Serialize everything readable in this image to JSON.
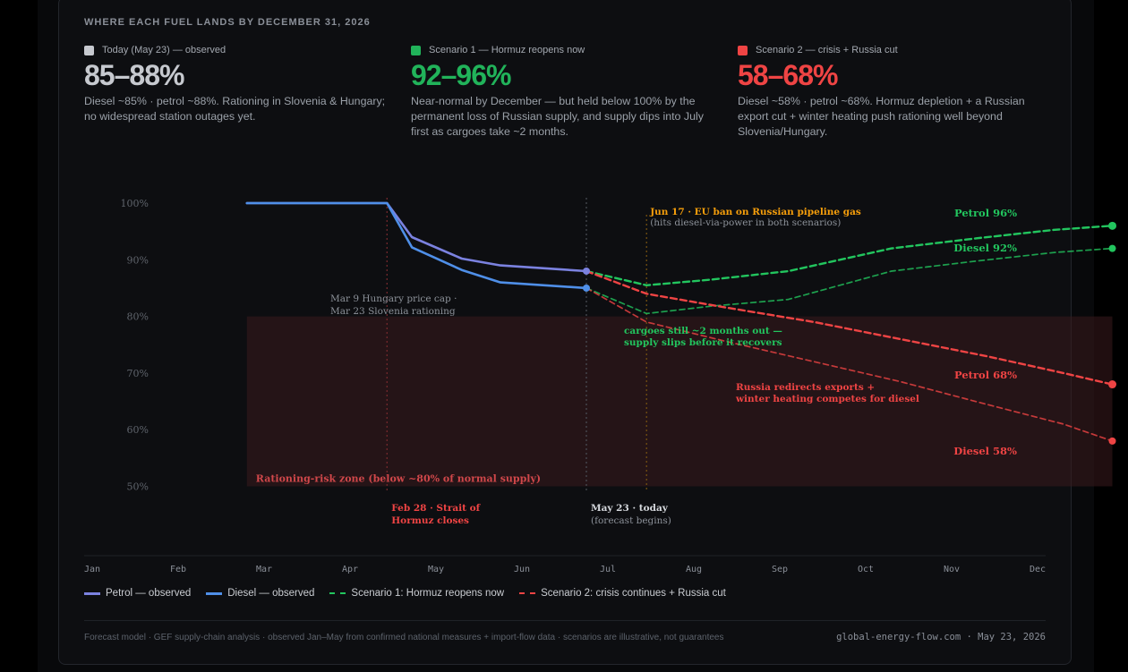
{
  "header": {
    "eyebrow": "WHERE EACH FUEL LANDS BY DECEMBER 31, 2026"
  },
  "stats": [
    {
      "label": "Today (May 23) — observed",
      "value": "85–88%",
      "desc": "Diesel ~85% · petrol ~88%. Rationing in Slovenia & Hungary; no widespread station outages yet.",
      "color": "#c6c9cf"
    },
    {
      "label": "Scenario 1 — Hormuz reopens now",
      "value": "92–96%",
      "desc": "Near-normal by December — but held below 100% by the permanent loss of Russian supply, and supply dips into July first as cargoes take ~2 months.",
      "color": "#21b35a"
    },
    {
      "label": "Scenario 2 — crisis + Russia cut",
      "value": "58–68%",
      "desc": "Diesel ~58% · petrol ~68%. Hormuz depletion + a Russian export cut + winter heating push rationing well beyond Slovenia/Hungary.",
      "color": "#ef4444"
    }
  ],
  "chart_data": {
    "type": "line",
    "x_axis": {
      "unit": "month (2026)",
      "ticks": [
        "Jan",
        "Feb",
        "Mar",
        "Apr",
        "May",
        "Jun",
        "Jul",
        "Aug",
        "Sep",
        "Oct",
        "Nov",
        "Dec"
      ]
    },
    "y_axis": {
      "ylim": [
        50,
        100
      ],
      "ticks": [
        "100%",
        "90%",
        "80%",
        "70%",
        "60%",
        "50%"
      ],
      "tick_values": [
        100,
        90,
        80,
        70,
        60,
        50
      ]
    },
    "grid": false,
    "legend_placement": "bottom-left",
    "zone": {
      "label": "Rationing-risk zone (below ~80% of normal supply)",
      "y_from": 50,
      "y_to": 80,
      "x_from": 1.8,
      "x_to": 11.87
    },
    "series": [
      {
        "name": "Petrol — observed",
        "color": "#7b82e0",
        "style": "solid",
        "x": [
          1.8,
          2.45,
          3.43,
          3.72,
          4.3,
          4.75,
          5.75
        ],
        "y": [
          100,
          100,
          100,
          94,
          90.2,
          89,
          88
        ]
      },
      {
        "name": "Diesel — observed",
        "color": "#4f8fe8",
        "style": "solid",
        "x": [
          1.8,
          2.45,
          3.43,
          3.72,
          4.3,
          4.75,
          5.75
        ],
        "y": [
          100,
          100,
          100,
          92.2,
          88.2,
          86,
          85
        ]
      },
      {
        "name": "Scenario 1 petrol",
        "group": "Scenario 1: Hormuz reopens now",
        "color": "#22c55e",
        "style": "dashed",
        "x": [
          5.75,
          6.45,
          7.2,
          8.1,
          9.3,
          10.3,
          11.2,
          11.87
        ],
        "y": [
          88,
          85.5,
          86.5,
          88,
          92,
          93.8,
          95.3,
          96
        ]
      },
      {
        "name": "Scenario 1 diesel",
        "group": "Scenario 1: Hormuz reopens now",
        "color": "#22c55e",
        "style": "dashed",
        "x": [
          5.75,
          6.45,
          7.2,
          8.1,
          9.3,
          10.3,
          11.2,
          11.87
        ],
        "y": [
          85,
          80.5,
          81.8,
          83,
          88,
          89.8,
          91.3,
          92
        ]
      },
      {
        "name": "Scenario 2 petrol",
        "group": "Scenario 2: crisis continues + Russia cut",
        "color": "#ef4444",
        "style": "dashed",
        "x": [
          5.75,
          6.45,
          7.4,
          8.4,
          9.4,
          10.4,
          11.3,
          11.87
        ],
        "y": [
          88,
          84,
          81.5,
          79,
          76,
          73,
          70,
          68
        ]
      },
      {
        "name": "Scenario 2 diesel",
        "group": "Scenario 2: crisis continues + Russia cut",
        "color": "#ef4444",
        "style": "dashed",
        "x": [
          5.75,
          6.45,
          7.4,
          8.4,
          9.4,
          10.4,
          11.3,
          11.87
        ],
        "y": [
          85,
          79,
          75.5,
          72,
          68.5,
          64.5,
          61,
          58
        ]
      }
    ],
    "end_labels": [
      {
        "text": "Petrol 96%",
        "color": "#22c55e",
        "x": 11.87,
        "y": 96
      },
      {
        "text": "Diesel 92%",
        "color": "#22c55e",
        "x": 11.87,
        "y": 92
      },
      {
        "text": "Petrol 68%",
        "color": "#ef4444",
        "x": 11.87,
        "y": 68
      },
      {
        "text": "Diesel 58%",
        "color": "#ef4444",
        "x": 11.87,
        "y": 58
      }
    ],
    "events": [
      {
        "x": 3.43,
        "color": "#ef4444",
        "lines": [
          "Feb 28 · Strait of",
          "Hormuz closes"
        ]
      },
      {
        "x": 5.75,
        "color": "#d5d8dd",
        "lines": [
          "May 23 · today",
          "(forecast begins)"
        ]
      },
      {
        "x": 6.45,
        "color": "#f59e0b",
        "lines": [
          "Jun 17 · EU ban on Russian pipeline gas",
          "(hits diesel-via-power in both scenarios)"
        ]
      }
    ],
    "annotations": [
      {
        "lines": [
          "Mar 9 Hungary price cap ·",
          "Mar 23 Slovenia rationing"
        ],
        "color": "#8c9199"
      },
      {
        "lines": [
          "cargoes still ~2 months out —",
          "supply slips before it recovers"
        ],
        "color": "#22c55e"
      },
      {
        "lines": [
          "Russia redirects exports +",
          "winter heating competes for diesel"
        ],
        "color": "#ef4444"
      }
    ]
  },
  "legend": [
    {
      "label": "Petrol — observed",
      "color": "#7b82e0",
      "style": "solid"
    },
    {
      "label": "Diesel — observed",
      "color": "#4f8fe8",
      "style": "solid"
    },
    {
      "label": "Scenario 1: Hormuz reopens now",
      "color": "#22c55e",
      "style": "dashed"
    },
    {
      "label": "Scenario 2: crisis continues + Russia cut",
      "color": "#ef4444",
      "style": "dashed"
    }
  ],
  "footer": {
    "source": "Forecast model · GEF supply-chain analysis · observed Jan–May from confirmed national measures + import-flow data · scenarios are illustrative, not guarantees",
    "credit": "global-energy-flow.com · May 23, 2026"
  }
}
